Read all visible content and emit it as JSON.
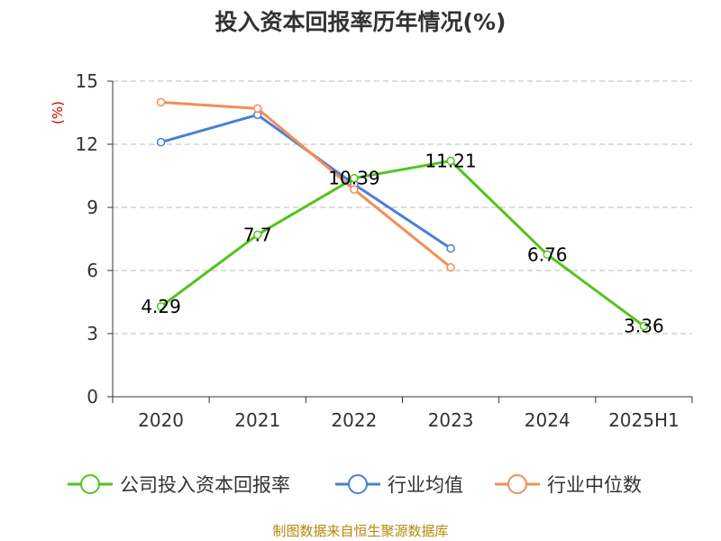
{
  "chart_data": {
    "type": "line",
    "title": "投入资本回报率历年情况(%)",
    "ylabel": "(%)",
    "xlabel": "",
    "categories": [
      "2020",
      "2021",
      "2022",
      "2023",
      "2024",
      "2025H1"
    ],
    "ylim": [
      0,
      15
    ],
    "yticks": [
      0,
      3,
      6,
      9,
      12,
      15
    ],
    "grid": true,
    "legend_position": "bottom",
    "series": [
      {
        "name": "公司投入资本回报率",
        "color": "#52c41a",
        "values": [
          4.29,
          7.7,
          10.39,
          11.21,
          6.76,
          3.36
        ],
        "labels": [
          "4.29",
          "7.7",
          "10.39",
          "11.21",
          "6.76",
          "3.36"
        ]
      },
      {
        "name": "行业均值",
        "color": "#4a7fd9",
        "values": [
          12.1,
          13.4,
          10.1,
          7.05,
          null,
          null
        ]
      },
      {
        "name": "行业中位数",
        "color": "#f58d55",
        "values": [
          14.0,
          13.7,
          9.85,
          6.15,
          null,
          null
        ]
      }
    ]
  },
  "source": "制图数据来自恒生聚源数据库"
}
